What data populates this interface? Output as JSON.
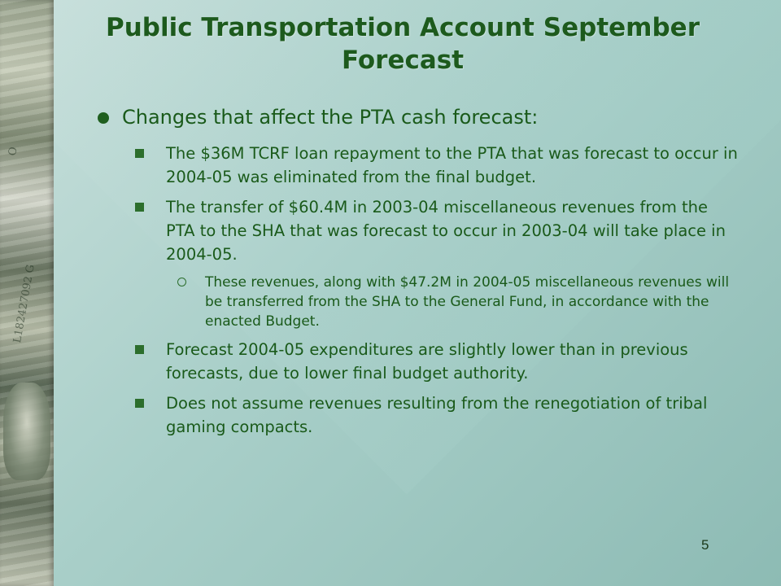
{
  "slide": {
    "title": "Public Transportation Account September Forecast",
    "heading": "Changes that affect the PTA cash forecast:",
    "bullets": [
      "The $36M TCRF loan repayment to the PTA that was forecast to occur in 2004-05 was eliminated from the final budget.",
      "The transfer of $60.4M in 2003-04 miscellaneous revenues from the PTA to the SHA that was forecast to occur in 2003-04 will take place in 2004-05."
    ],
    "sub_bullet": "These revenues, along with $47.2M in 2004-05 miscellaneous revenues will be transferred from the SHA to the General Fund, in accordance with the enacted Budget.",
    "bullets_after": [
      "Forecast 2004-05 expenditures are slightly lower than in previous forecasts, due to lower final budget authority.",
      "Does not assume revenues resulting from the renegotiation of tribal gaming compacts."
    ],
    "page_number": "5",
    "bill_marks": [
      "O",
      "L182427092 G"
    ]
  },
  "colors": {
    "text_green": "#1a5a1a",
    "background_teal": "#a9cfc9"
  }
}
